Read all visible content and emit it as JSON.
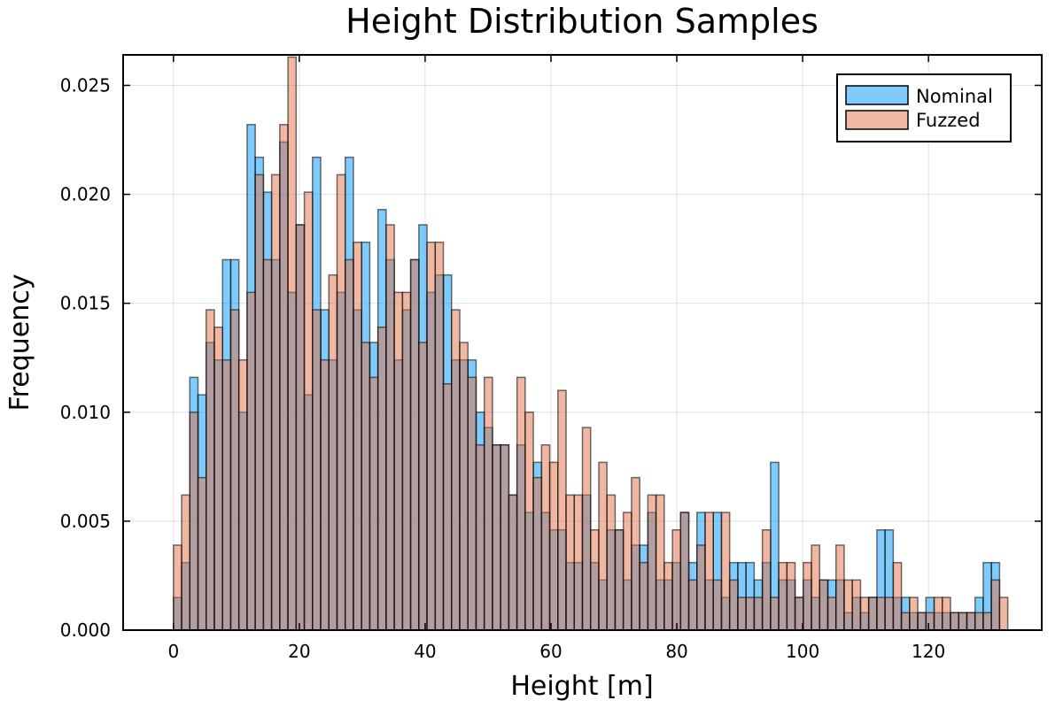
{
  "chart_data": {
    "type": "bar",
    "title": "Height Distribution Samples",
    "xlabel": "Height [m]",
    "ylabel": "Frequency",
    "xlim": [
      -8,
      138
    ],
    "ylim": [
      0,
      0.0264
    ],
    "xticks": [
      0,
      20,
      40,
      60,
      80,
      100,
      120
    ],
    "xtick_labels": [
      "0",
      "20",
      "40",
      "60",
      "80",
      "100",
      "120"
    ],
    "yticks": [
      0,
      0.005,
      0.01,
      0.015,
      0.02,
      0.025
    ],
    "ytick_labels": [
      "0.000",
      "0.005",
      "0.010",
      "0.015",
      "0.020",
      "0.025"
    ],
    "bin_start": 0,
    "bin_width": 1.3,
    "grid": true,
    "legend_position": "top-right",
    "series": [
      {
        "name": "Nominal",
        "color": "#009AFA",
        "values": [
          0.0015,
          0.0031,
          0.0116,
          0.0108,
          0.0132,
          0.0124,
          0.017,
          0.017,
          0.01,
          0.0232,
          0.0217,
          0.0201,
          0.017,
          0.0224,
          0.0155,
          0.0186,
          0.0108,
          0.0217,
          0.0147,
          0.0124,
          0.0155,
          0.0217,
          0.0147,
          0.0178,
          0.0132,
          0.0193,
          0.017,
          0.0124,
          0.0147,
          0.017,
          0.0186,
          0.0155,
          0.0163,
          0.0163,
          0.0124,
          0.0124,
          0.0124,
          0.01,
          0.0093,
          0.0085,
          0.0085,
          0.0062,
          0.0085,
          0.0054,
          0.0077,
          0.0054,
          0.0046,
          0.0046,
          0.0031,
          0.0031,
          0.0062,
          0.0031,
          0.0023,
          0.0046,
          0.0046,
          0.0023,
          0.0039,
          0.0039,
          0.0054,
          0.0023,
          0.0023,
          0.0031,
          0.0054,
          0.0031,
          0.0054,
          0.0023,
          0.0054,
          0.0015,
          0.0031,
          0.0031,
          0.0031,
          0.0023,
          0.0031,
          0.0077,
          0.0023,
          0.0023,
          0.0015,
          0.0023,
          0.0015,
          0.0023,
          0.0023,
          0.0023,
          0.0008,
          0.0015,
          0.0008,
          0.0015,
          0.0046,
          0.0046,
          0.0015,
          0.0015,
          0.0008,
          0.0008,
          0.0015,
          0.0008,
          0.0008,
          0.0008,
          0.0008,
          0.0008,
          0.0015,
          0.0031,
          0.0031
        ]
      },
      {
        "name": "Fuzzed",
        "color": "#E26F46",
        "values": [
          0.0039,
          0.0062,
          0.01,
          0.007,
          0.0147,
          0.0139,
          0.0124,
          0.0147,
          0.0124,
          0.0155,
          0.0209,
          0.017,
          0.0209,
          0.0232,
          0.0263,
          0.0186,
          0.0201,
          0.0147,
          0.0124,
          0.0163,
          0.0209,
          0.017,
          0.0178,
          0.0132,
          0.0116,
          0.0139,
          0.0186,
          0.0155,
          0.0155,
          0.017,
          0.0132,
          0.0178,
          0.0178,
          0.0113,
          0.0147,
          0.0132,
          0.0116,
          0.0085,
          0.0116,
          0.0085,
          0.0085,
          0.0062,
          0.0116,
          0.01,
          0.007,
          0.0085,
          0.0077,
          0.011,
          0.0062,
          0.0062,
          0.0093,
          0.0046,
          0.0077,
          0.0062,
          0.0046,
          0.0054,
          0.007,
          0.0031,
          0.0062,
          0.0062,
          0.0031,
          0.0046,
          0.0054,
          0.0023,
          0.0039,
          0.0054,
          0.0023,
          0.0054,
          0.0023,
          0.0015,
          0.0015,
          0.0015,
          0.0046,
          0.0015,
          0.0031,
          0.0031,
          0.0015,
          0.0031,
          0.0039,
          0.0023,
          0.0015,
          0.0039,
          0.0023,
          0.0023,
          0.0015,
          0.0015,
          0.0015,
          0.0015,
          0.0031,
          0.0008,
          0.0015,
          0.0008,
          0.0008,
          0.0015,
          0.0015,
          0.0008,
          0.0008,
          0.0008,
          0.0008,
          0.0008,
          0.0023,
          0.0015
        ]
      }
    ]
  }
}
